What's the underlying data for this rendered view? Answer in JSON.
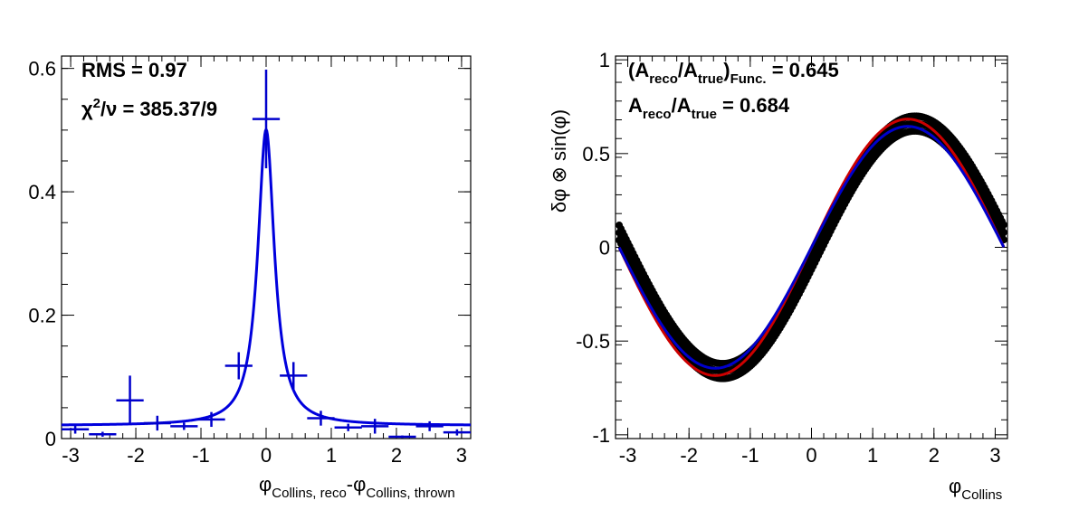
{
  "chart_data": [
    {
      "type": "scatter",
      "description_of_marks": "histogram points with error bars and fitted curve",
      "xlabel_main": "φ",
      "xlabel_sub1": "Collins, reco",
      "xlabel_mid": "-φ",
      "xlabel_sub2": "Collins, thrown",
      "ylabel": "",
      "xlim": [
        -3.14,
        3.14
      ],
      "ylim": [
        0,
        0.62
      ],
      "xticks": [
        -3,
        -2,
        -1,
        0,
        1,
        2,
        3
      ],
      "yticks": [
        0,
        0.2,
        0.4,
        0.6
      ],
      "stats": {
        "rms": "RMS = 0.97",
        "chi2_symbol": "χ",
        "chi2_sup": "2",
        "chi2_rest": "/ν = 385.37/9"
      },
      "series": [
        {
          "kind": "histogram",
          "color": "#0000cc",
          "bin_half_width": 0.21,
          "points": [
            {
              "x": -2.93,
              "y": 0.015,
              "err": 0.007
            },
            {
              "x": -2.51,
              "y": 0.007,
              "err": 0.004
            },
            {
              "x": -2.09,
              "y": 0.062,
              "err": 0.04
            },
            {
              "x": -1.67,
              "y": 0.025,
              "err": 0.012
            },
            {
              "x": -1.26,
              "y": 0.02,
              "err": 0.006
            },
            {
              "x": -0.84,
              "y": 0.031,
              "err": 0.012
            },
            {
              "x": -0.42,
              "y": 0.118,
              "err": 0.022
            },
            {
              "x": 0.0,
              "y": 0.518,
              "err": 0.08
            },
            {
              "x": 0.42,
              "y": 0.102,
              "err": 0.022
            },
            {
              "x": 0.84,
              "y": 0.033,
              "err": 0.012
            },
            {
              "x": 1.26,
              "y": 0.018,
              "err": 0.006
            },
            {
              "x": 1.67,
              "y": 0.02,
              "err": 0.012
            },
            {
              "x": 2.09,
              "y": 0.003,
              "err": 0.002
            },
            {
              "x": 2.51,
              "y": 0.02,
              "err": 0.008
            },
            {
              "x": 2.93,
              "y": 0.01,
              "err": 0.005
            }
          ]
        },
        {
          "kind": "fit",
          "color": "#0000dd",
          "function": "lorentzian",
          "amplitude": 0.48,
          "gamma": 0.155,
          "baseline": 0.021
        }
      ]
    },
    {
      "type": "scatter",
      "xlabel_main": "φ",
      "xlabel_sub": "Collins",
      "ylabel": "δφ ⊗ sin(φ)",
      "xlim": [
        -3.2,
        3.2
      ],
      "ylim": [
        -1.02,
        1.02
      ],
      "xticks": [
        -3,
        -2,
        -1,
        0,
        1,
        2,
        3
      ],
      "yticks": [
        -1,
        -0.5,
        0,
        0.5,
        1
      ],
      "stats": {
        "line1_a": "(A",
        "line1_a_sub": "reco",
        "line1_b": "/A",
        "line1_b_sub": "true",
        "line1_c": ")",
        "line1_c_sub": "Func.",
        "line1_d": " = 0.645",
        "line2_a": "A",
        "line2_a_sub": "reco",
        "line2_b": "/A",
        "line2_b_sub": "true",
        "line2_c": " = 0.684"
      },
      "series": [
        {
          "kind": "points_band",
          "color": "#000000",
          "amplitude": 0.66,
          "phase_shift": -0.12,
          "half_width": 0.04,
          "x_range": [
            -3.14,
            3.14
          ]
        },
        {
          "kind": "curve",
          "color": "#cc0000",
          "amplitude": 0.684,
          "phase_shift": 0.0
        },
        {
          "kind": "curve",
          "color": "#0000cc",
          "amplitude": 0.645,
          "phase_shift": 0.0
        }
      ]
    }
  ]
}
